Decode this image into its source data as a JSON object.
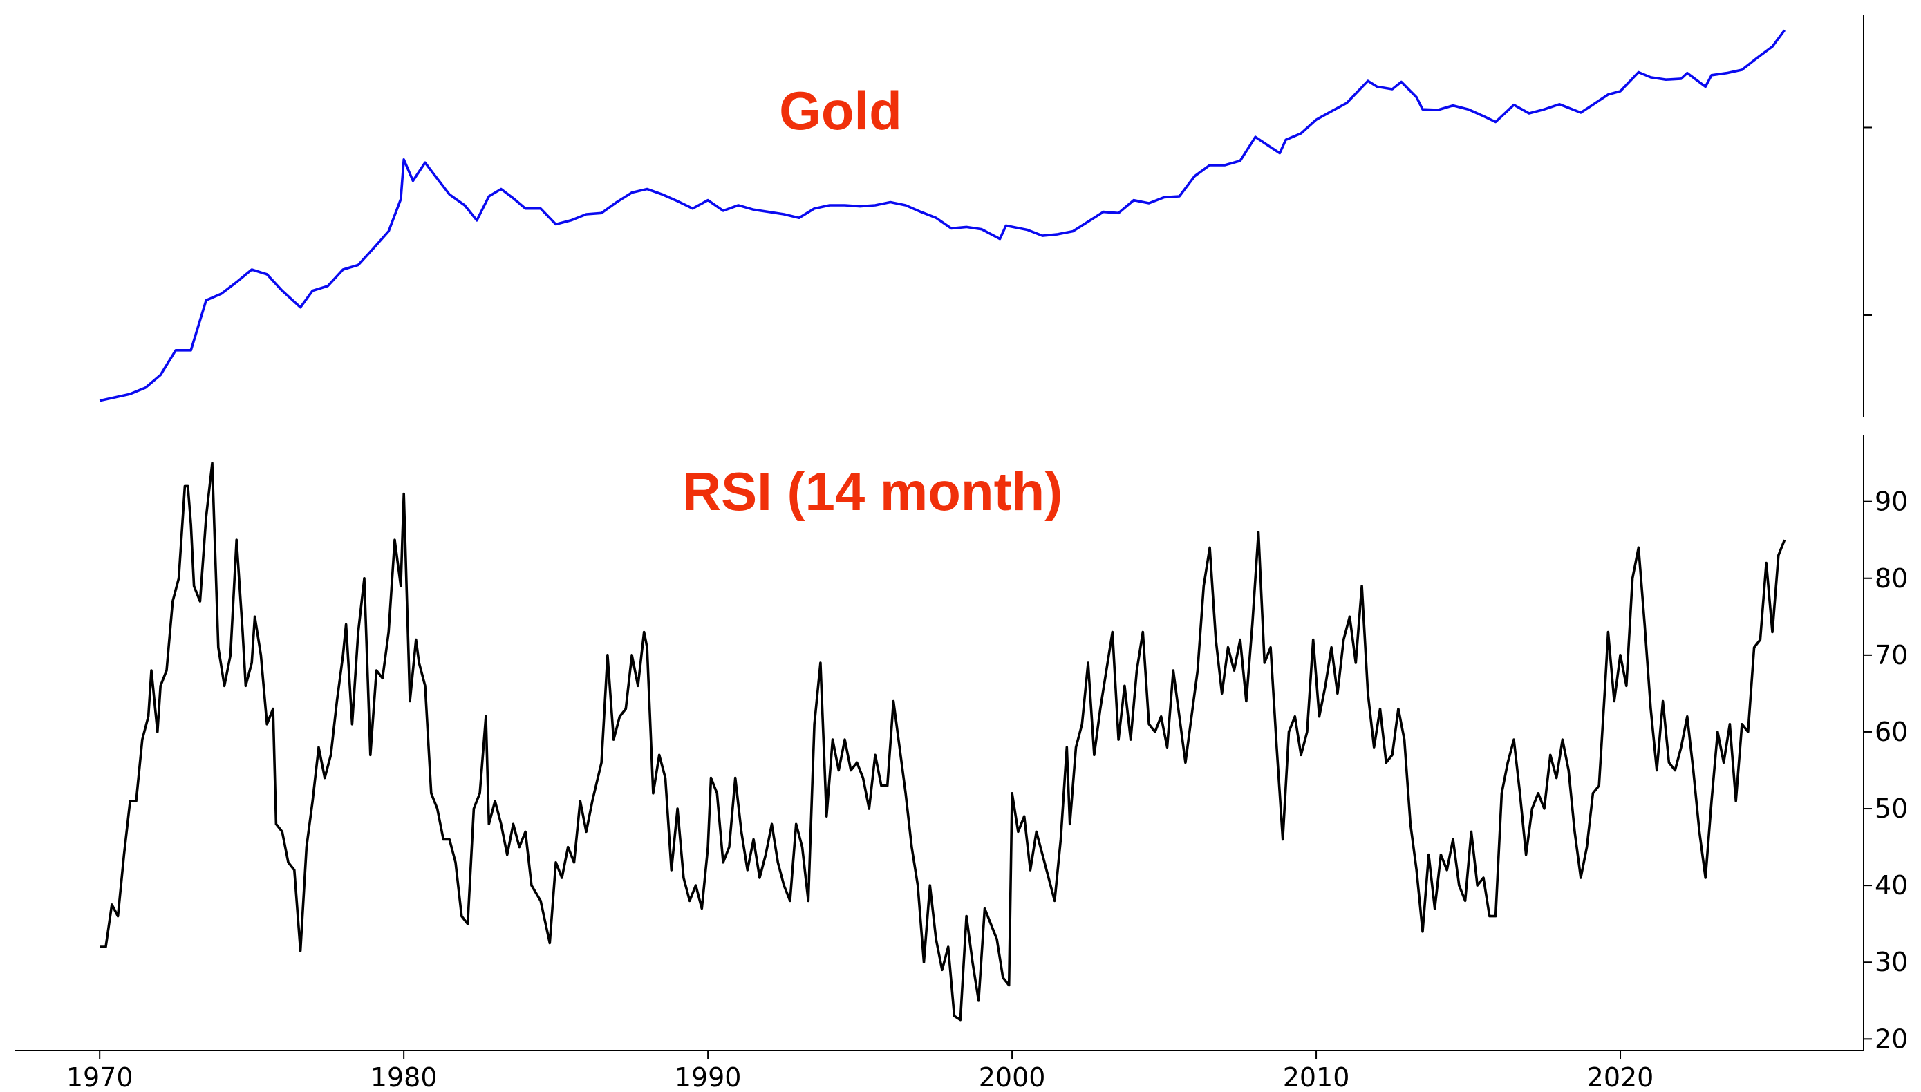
{
  "chart_data": [
    {
      "type": "line",
      "title": "Gold",
      "log_y": true,
      "color": "#0a0af0",
      "xlim": [
        1967.2,
        2028.0
      ],
      "ylim": [
        28.5,
        4000
      ],
      "yticks": [
        100,
        1000
      ],
      "x": [
        1970.0,
        1971.0,
        1971.5,
        1972.0,
        1972.5,
        1973.0,
        1973.5,
        1974.0,
        1974.5,
        1975.0,
        1975.5,
        1976.0,
        1976.6,
        1977.0,
        1977.5,
        1978.0,
        1978.5,
        1979.0,
        1979.5,
        1979.9,
        1980.0,
        1980.3,
        1980.7,
        1981.0,
        1981.5,
        1982.0,
        1982.4,
        1982.8,
        1983.2,
        1983.6,
        1984.0,
        1984.5,
        1985.0,
        1985.5,
        1986.0,
        1986.5,
        1987.0,
        1987.5,
        1988.0,
        1988.5,
        1989.0,
        1989.5,
        1990.0,
        1990.5,
        1991.0,
        1991.5,
        1992.0,
        1992.5,
        1993.0,
        1993.5,
        1994.0,
        1994.5,
        1995.0,
        1995.5,
        1996.0,
        1996.5,
        1997.0,
        1997.5,
        1998.0,
        1998.5,
        1999.0,
        1999.6,
        1999.8,
        2000.5,
        2001.0,
        2001.5,
        2002.0,
        2002.5,
        2003.0,
        2003.5,
        2004.0,
        2004.5,
        2005.0,
        2005.5,
        2006.0,
        2006.5,
        2007.0,
        2007.5,
        2008.0,
        2008.8,
        2009.0,
        2009.5,
        2010.0,
        2010.5,
        2011.0,
        2011.7,
        2012.0,
        2012.5,
        2012.8,
        2013.3,
        2013.5,
        2014.0,
        2014.5,
        2015.0,
        2015.5,
        2015.9,
        2016.5,
        2017.0,
        2017.5,
        2018.0,
        2018.7,
        2019.0,
        2019.6,
        2020.0,
        2020.6,
        2021.0,
        2021.5,
        2022.0,
        2022.2,
        2022.8,
        2023.0,
        2023.5,
        2024.0,
        2024.5,
        2025.0,
        2025.4
      ],
      "values": [
        35,
        38,
        41,
        48,
        65,
        65,
        120,
        130,
        150,
        175,
        165,
        135,
        110,
        135,
        143,
        175,
        185,
        227,
        280,
        415,
        675,
        520,
        650,
        560,
        440,
        385,
        320,
        430,
        470,
        420,
        370,
        370,
        305,
        320,
        345,
        350,
        400,
        450,
        470,
        440,
        405,
        370,
        410,
        360,
        385,
        365,
        355,
        345,
        330,
        370,
        385,
        385,
        380,
        385,
        400,
        385,
        355,
        330,
        290,
        295,
        287,
        255,
        300,
        285,
        265,
        270,
        280,
        315,
        355,
        350,
        410,
        395,
        425,
        430,
        550,
        630,
        630,
        665,
        890,
        730,
        860,
        930,
        1100,
        1220,
        1350,
        1770,
        1650,
        1600,
        1750,
        1450,
        1250,
        1240,
        1310,
        1250,
        1150,
        1070,
        1320,
        1190,
        1250,
        1330,
        1200,
        1290,
        1500,
        1560,
        1970,
        1850,
        1800,
        1820,
        1950,
        1650,
        1900,
        1950,
        2030,
        2350,
        2700,
        3300
      ]
    },
    {
      "type": "line",
      "title": "RSI (14 month)",
      "color": "#000000",
      "xlim": [
        1967.2,
        2028.0
      ],
      "ylim": [
        18.5,
        98.7
      ],
      "yticks": [
        20,
        30,
        40,
        50,
        60,
        70,
        80,
        90
      ],
      "xticks": [
        1970,
        1980,
        1990,
        2000,
        2010,
        2020
      ],
      "x": [
        1970.0,
        1970.2,
        1970.4,
        1970.6,
        1970.8,
        1971.0,
        1971.2,
        1971.4,
        1971.6,
        1971.7,
        1971.9,
        1972.0,
        1972.2,
        1972.4,
        1972.6,
        1972.8,
        1972.9,
        1973.0,
        1973.1,
        1973.3,
        1973.5,
        1973.7,
        1973.9,
        1974.1,
        1974.3,
        1974.5,
        1974.7,
        1974.8,
        1975.0,
        1975.1,
        1975.3,
        1975.5,
        1975.7,
        1975.8,
        1976.0,
        1976.2,
        1976.4,
        1976.6,
        1976.8,
        1977.0,
        1977.2,
        1977.4,
        1977.6,
        1977.8,
        1978.0,
        1978.1,
        1978.3,
        1978.5,
        1978.7,
        1978.9,
        1979.1,
        1979.3,
        1979.5,
        1979.7,
        1979.9,
        1980.0,
        1980.2,
        1980.4,
        1980.5,
        1980.7,
        1980.9,
        1981.1,
        1981.3,
        1981.5,
        1981.7,
        1981.9,
        1982.1,
        1982.3,
        1982.5,
        1982.7,
        1982.8,
        1983.0,
        1983.2,
        1983.4,
        1983.6,
        1983.8,
        1984.0,
        1984.2,
        1984.5,
        1984.8,
        1985.0,
        1985.2,
        1985.4,
        1985.6,
        1985.8,
        1986.0,
        1986.2,
        1986.5,
        1986.7,
        1986.9,
        1987.1,
        1987.3,
        1987.5,
        1987.7,
        1987.9,
        1988.0,
        1988.2,
        1988.4,
        1988.6,
        1988.8,
        1989.0,
        1989.2,
        1989.4,
        1989.6,
        1989.8,
        1990.0,
        1990.1,
        1990.3,
        1990.5,
        1990.7,
        1990.9,
        1991.1,
        1991.3,
        1991.5,
        1991.7,
        1991.9,
        1992.1,
        1992.3,
        1992.5,
        1992.7,
        1992.9,
        1993.1,
        1993.3,
        1993.5,
        1993.7,
        1993.9,
        1994.1,
        1994.3,
        1994.5,
        1994.7,
        1994.9,
        1995.1,
        1995.3,
        1995.5,
        1995.7,
        1995.9,
        1996.1,
        1996.3,
        1996.5,
        1996.7,
        1996.9,
        1997.1,
        1997.3,
        1997.5,
        1997.7,
        1997.9,
        1998.1,
        1998.3,
        1998.5,
        1998.7,
        1998.9,
        1999.1,
        1999.3,
        1999.5,
        1999.7,
        1999.9,
        2000.0,
        2000.2,
        2000.4,
        2000.6,
        2000.8,
        2001.0,
        2001.2,
        2001.4,
        2001.6,
        2001.8,
        2001.9,
        2002.1,
        2002.3,
        2002.5,
        2002.7,
        2002.9,
        2003.1,
        2003.3,
        2003.5,
        2003.7,
        2003.9,
        2004.1,
        2004.3,
        2004.5,
        2004.7,
        2004.9,
        2005.1,
        2005.3,
        2005.5,
        2005.7,
        2005.9,
        2006.1,
        2006.3,
        2006.5,
        2006.7,
        2006.9,
        2007.1,
        2007.3,
        2007.5,
        2007.7,
        2007.9,
        2008.1,
        2008.3,
        2008.5,
        2008.7,
        2008.9,
        2009.1,
        2009.3,
        2009.5,
        2009.7,
        2009.9,
        2010.1,
        2010.3,
        2010.5,
        2010.7,
        2010.9,
        2011.1,
        2011.3,
        2011.5,
        2011.7,
        2011.9,
        2012.1,
        2012.3,
        2012.5,
        2012.7,
        2012.9,
        2013.1,
        2013.3,
        2013.5,
        2013.7,
        2013.9,
        2014.1,
        2014.3,
        2014.5,
        2014.7,
        2014.9,
        2015.1,
        2015.3,
        2015.5,
        2015.7,
        2015.9,
        2016.1,
        2016.3,
        2016.5,
        2016.7,
        2016.9,
        2017.1,
        2017.3,
        2017.5,
        2017.7,
        2017.9,
        2018.1,
        2018.3,
        2018.5,
        2018.7,
        2018.9,
        2019.1,
        2019.3,
        2019.5,
        2019.6,
        2019.8,
        2020.0,
        2020.2,
        2020.4,
        2020.6,
        2020.8,
        2021.0,
        2021.2,
        2021.4,
        2021.6,
        2021.8,
        2022.0,
        2022.2,
        2022.4,
        2022.6,
        2022.8,
        2023.0,
        2023.2,
        2023.4,
        2023.6,
        2023.8,
        2024.0,
        2024.2,
        2024.4,
        2024.6,
        2024.8,
        2025.0,
        2025.2,
        2025.4
      ],
      "values": [
        32,
        32,
        37.5,
        36,
        44,
        51,
        51,
        59,
        62,
        68,
        60,
        66,
        68,
        77,
        80,
        92,
        92,
        87,
        79,
        77,
        88,
        95,
        71,
        66,
        70,
        85,
        73,
        66,
        69,
        75,
        70,
        61,
        63,
        48,
        47,
        43,
        42,
        31.5,
        45,
        51,
        58,
        54,
        57,
        64,
        70,
        74,
        61,
        73,
        80,
        57,
        68,
        67,
        73,
        85,
        79,
        91,
        64,
        72,
        69,
        66,
        52,
        50,
        46,
        46,
        43,
        36,
        35,
        50,
        52,
        62,
        48,
        51,
        48,
        44,
        48,
        45,
        47,
        40,
        38,
        32.5,
        43,
        41,
        45,
        43,
        51,
        47,
        51,
        56,
        70,
        59,
        62,
        63,
        70,
        66,
        73,
        71,
        52,
        57,
        54,
        42,
        50,
        41,
        38,
        40,
        37,
        45,
        54,
        52,
        43,
        45,
        54,
        47,
        42,
        46,
        41,
        44,
        48,
        43,
        40,
        38,
        48,
        45,
        38,
        61,
        69,
        49,
        59,
        55,
        59,
        55,
        56,
        54,
        50,
        57,
        53,
        53,
        64,
        58,
        52,
        45,
        40,
        30,
        40,
        33,
        29,
        32,
        23,
        22.5,
        36,
        30,
        25,
        37,
        35,
        33,
        28,
        27,
        52,
        47,
        49,
        42,
        47,
        44,
        41,
        38,
        46,
        58,
        48,
        58,
        61,
        69,
        57,
        63,
        68,
        73,
        59,
        66,
        59,
        68,
        73,
        61,
        60,
        62,
        58,
        68,
        62,
        56,
        62,
        68,
        79,
        84,
        72,
        65,
        71,
        68,
        72,
        64,
        74,
        86,
        69,
        71,
        58,
        46,
        60,
        62,
        57,
        60,
        72,
        62,
        66,
        71,
        65,
        72,
        75,
        69,
        79,
        65,
        58,
        63,
        56,
        57,
        63,
        59,
        48,
        42,
        34,
        44,
        37,
        44,
        42,
        46,
        40,
        38,
        47,
        40,
        41,
        36,
        36,
        52,
        56,
        59,
        52,
        44,
        50,
        52,
        50,
        57,
        54,
        59,
        55,
        47,
        41,
        45,
        52,
        53,
        66,
        73,
        64,
        70,
        66,
        80,
        84,
        74,
        63,
        55,
        64,
        56,
        55,
        58,
        62,
        55,
        47,
        41,
        51,
        60,
        56,
        61,
        51,
        61,
        60,
        71,
        72,
        82,
        73,
        83,
        85
      ]
    }
  ]
}
